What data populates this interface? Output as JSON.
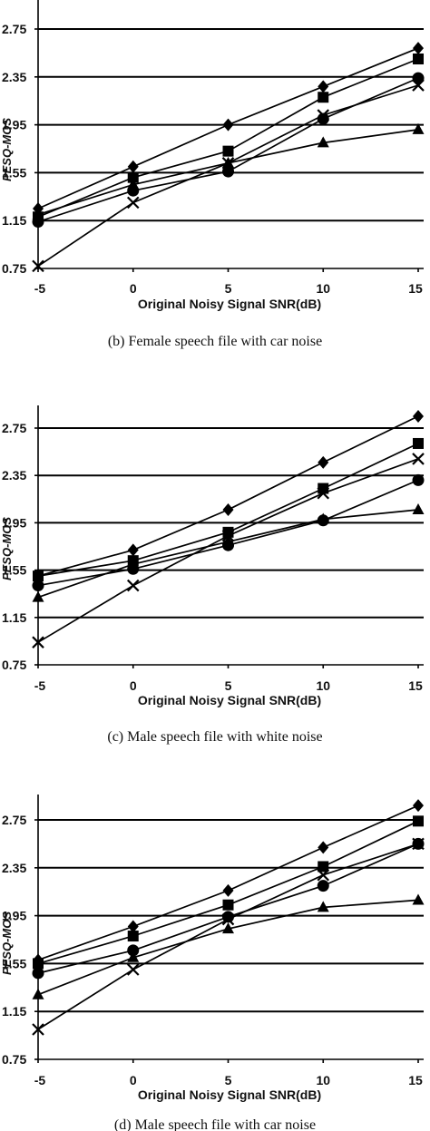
{
  "chart_data": [
    {
      "type": "line",
      "title": "",
      "caption": "(b) Female speech file with car noise",
      "xlabel": "Original Noisy Signal SNR(dB)",
      "ylabel": "PESQ-MOS",
      "x": [
        -5,
        0,
        5,
        10,
        15
      ],
      "x_tick_labels": [
        "-5",
        "0",
        "5",
        "10",
        "15"
      ],
      "y_tick_labels": [
        "0.75",
        "1.15",
        "1.55",
        "1.95",
        "2.35",
        "2.75"
      ],
      "ylim": [
        0.75,
        3.05
      ],
      "grid": "horizontal",
      "series": [
        {
          "marker": "diamond",
          "values": [
            1.25,
            1.6,
            1.95,
            2.27,
            2.59
          ]
        },
        {
          "marker": "square",
          "values": [
            1.18,
            1.51,
            1.73,
            2.18,
            2.5
          ]
        },
        {
          "marker": "circle",
          "values": [
            1.14,
            1.4,
            1.56,
            2.0,
            2.34
          ]
        },
        {
          "marker": "triangle",
          "values": [
            1.2,
            1.45,
            1.63,
            1.8,
            1.91
          ]
        },
        {
          "marker": "cross",
          "values": [
            0.77,
            1.3,
            1.63,
            2.03,
            2.28
          ]
        }
      ]
    },
    {
      "type": "line",
      "title": "",
      "caption": "(c) Male speech file with white noise",
      "xlabel": "Original Noisy Signal SNR(dB)",
      "ylabel": "PESQ-MOS",
      "x": [
        -5,
        0,
        5,
        10,
        15
      ],
      "x_tick_labels": [
        "-5",
        "0",
        "5",
        "10",
        "15"
      ],
      "y_tick_labels": [
        "0.75",
        "1.15",
        "1.55",
        "1.95",
        "2.35",
        "2.75"
      ],
      "ylim": [
        0.75,
        3.05
      ],
      "grid": "horizontal",
      "series": [
        {
          "marker": "diamond",
          "values": [
            1.5,
            1.72,
            2.06,
            2.46,
            2.85
          ]
        },
        {
          "marker": "square",
          "values": [
            1.5,
            1.63,
            1.87,
            2.24,
            2.62
          ]
        },
        {
          "marker": "circle",
          "values": [
            1.42,
            1.56,
            1.76,
            1.97,
            2.31
          ]
        },
        {
          "marker": "triangle",
          "values": [
            1.32,
            1.6,
            1.79,
            1.98,
            2.06
          ]
        },
        {
          "marker": "cross",
          "values": [
            0.94,
            1.42,
            1.84,
            2.2,
            2.49
          ]
        }
      ]
    },
    {
      "type": "line",
      "title": "",
      "caption": "(d) Male speech file with car noise",
      "xlabel": "Original Noisy Signal SNR(dB)",
      "ylabel": "PESQ-MOS",
      "x": [
        -5,
        0,
        5,
        10,
        15
      ],
      "x_tick_labels": [
        "-5",
        "0",
        "5",
        "10",
        "15"
      ],
      "y_tick_labels": [
        "0.75",
        "1.15",
        "1.55",
        "1.95",
        "2.35",
        "2.75"
      ],
      "ylim": [
        0.75,
        3.05
      ],
      "grid": "horizontal",
      "series": [
        {
          "marker": "diamond",
          "values": [
            1.58,
            1.86,
            2.16,
            2.52,
            2.87
          ]
        },
        {
          "marker": "square",
          "values": [
            1.55,
            1.78,
            2.04,
            2.36,
            2.74
          ]
        },
        {
          "marker": "circle",
          "values": [
            1.47,
            1.66,
            1.94,
            2.2,
            2.55
          ]
        },
        {
          "marker": "triangle",
          "values": [
            1.29,
            1.6,
            1.84,
            2.02,
            2.08
          ]
        },
        {
          "marker": "cross",
          "values": [
            1.0,
            1.5,
            1.92,
            2.29,
            2.55
          ]
        }
      ]
    }
  ]
}
